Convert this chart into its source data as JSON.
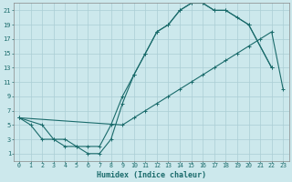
{
  "xlabel": "Humidex (Indice chaleur)",
  "bg_color": "#cce8ec",
  "grid_color": "#aacdd4",
  "line_color": "#1a6b6b",
  "xlim": [
    -0.5,
    23.5
  ],
  "ylim": [
    0,
    22
  ],
  "xticks": [
    0,
    1,
    2,
    3,
    4,
    5,
    6,
    7,
    8,
    9,
    10,
    11,
    12,
    13,
    14,
    15,
    16,
    17,
    18,
    19,
    20,
    21,
    22,
    23
  ],
  "yticks": [
    1,
    3,
    5,
    7,
    9,
    11,
    13,
    15,
    17,
    19,
    21
  ],
  "series": [
    {
      "x": [
        0,
        1,
        2,
        3,
        4,
        5,
        6,
        7,
        8,
        9,
        10,
        11,
        12,
        13,
        14,
        15,
        16,
        17,
        18,
        19,
        20,
        22
      ],
      "y": [
        6,
        5,
        3,
        3,
        2,
        2,
        1,
        1,
        3,
        8,
        12,
        15,
        18,
        19,
        21,
        22,
        22,
        21,
        21,
        20,
        19,
        13
      ]
    },
    {
      "x": [
        0,
        2,
        3,
        4,
        5,
        6,
        7,
        8,
        9,
        10,
        11,
        12,
        13,
        14,
        15,
        16,
        17,
        18,
        20,
        22
      ],
      "y": [
        6,
        5,
        3,
        3,
        2,
        2,
        2,
        5,
        9,
        12,
        15,
        18,
        19,
        21,
        22,
        22,
        21,
        21,
        19,
        13
      ]
    },
    {
      "x": [
        0,
        9,
        10,
        11,
        12,
        13,
        14,
        15,
        16,
        17,
        18,
        19,
        20,
        21,
        22,
        23
      ],
      "y": [
        6,
        5,
        6,
        7,
        8,
        9,
        10,
        11,
        12,
        13,
        14,
        15,
        16,
        17,
        18,
        10
      ]
    }
  ]
}
